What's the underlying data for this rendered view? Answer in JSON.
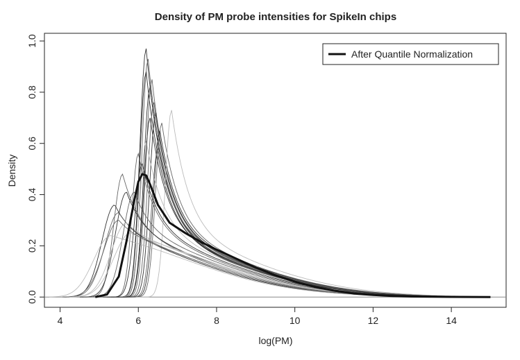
{
  "chart_data": {
    "type": "line",
    "title": "Density of PM probe intensities for SpikeIn chips",
    "xlabel": "log(PM)",
    "ylabel": "Density",
    "xlim": [
      3.6,
      15.4
    ],
    "ylim": [
      -0.04,
      1.03
    ],
    "x_ticks": [
      "4",
      "6",
      "8",
      "10",
      "12",
      "14"
    ],
    "x_tick_values": [
      4,
      6,
      8,
      10,
      12,
      14
    ],
    "y_ticks": [
      "0.0",
      "0.2",
      "0.4",
      "0.6",
      "0.8",
      "1.0"
    ],
    "y_tick_values": [
      0.0,
      0.2,
      0.4,
      0.6,
      0.8,
      1.0
    ],
    "legend": {
      "position": "top-right",
      "entries": [
        "After Quantile Normalization"
      ]
    },
    "colors": {
      "dark": "#333333",
      "mid": "#666666",
      "light": "#bbbbbb",
      "highlight": "#111111"
    },
    "highlight": {
      "name": "After Quantile Normalization",
      "x": [
        4.9,
        5.2,
        5.5,
        5.7,
        5.9,
        6.0,
        6.1,
        6.2,
        6.3,
        6.5,
        6.8,
        7.2,
        7.6,
        8.0,
        8.5,
        9.0,
        9.5,
        10.0,
        10.5,
        11.0,
        11.5,
        12.0,
        12.5,
        13.0,
        14.0,
        15.0
      ],
      "y": [
        0.0,
        0.01,
        0.08,
        0.22,
        0.38,
        0.45,
        0.48,
        0.475,
        0.44,
        0.36,
        0.29,
        0.25,
        0.215,
        0.185,
        0.15,
        0.115,
        0.085,
        0.06,
        0.04,
        0.025,
        0.014,
        0.008,
        0.004,
        0.002,
        0.0005,
        0.0
      ]
    },
    "series": [
      {
        "peak_x": 6.2,
        "peak_y": 0.97,
        "tone": "dark"
      },
      {
        "peak_x": 6.25,
        "peak_y": 0.93,
        "tone": "mid"
      },
      {
        "peak_x": 6.2,
        "peak_y": 0.88,
        "tone": "dark"
      },
      {
        "peak_x": 6.35,
        "peak_y": 0.85,
        "tone": "mid"
      },
      {
        "peak_x": 6.3,
        "peak_y": 0.82,
        "tone": "dark"
      },
      {
        "peak_x": 6.4,
        "peak_y": 0.76,
        "tone": "mid"
      },
      {
        "peak_x": 6.45,
        "peak_y": 0.72,
        "tone": "dark"
      },
      {
        "peak_x": 6.6,
        "peak_y": 0.68,
        "tone": "mid"
      },
      {
        "peak_x": 6.55,
        "peak_y": 0.65,
        "tone": "dark"
      },
      {
        "peak_x": 6.85,
        "peak_y": 0.73,
        "tone": "light"
      },
      {
        "peak_x": 6.2,
        "peak_y": 0.61,
        "tone": "light"
      },
      {
        "peak_x": 6.0,
        "peak_y": 0.56,
        "tone": "mid"
      },
      {
        "peak_x": 5.6,
        "peak_y": 0.48,
        "tone": "mid"
      },
      {
        "peak_x": 5.7,
        "peak_y": 0.41,
        "tone": "dark"
      },
      {
        "peak_x": 5.9,
        "peak_y": 0.41,
        "tone": "mid"
      },
      {
        "peak_x": 5.4,
        "peak_y": 0.36,
        "tone": "dark"
      },
      {
        "peak_x": 5.5,
        "peak_y": 0.33,
        "tone": "mid"
      },
      {
        "peak_x": 5.7,
        "peak_y": 0.29,
        "tone": "light"
      },
      {
        "peak_x": 5.8,
        "peak_y": 0.25,
        "tone": "light"
      },
      {
        "peak_x": 5.3,
        "peak_y": 0.24,
        "tone": "light"
      },
      {
        "peak_x": 6.1,
        "peak_y": 0.52,
        "tone": "dark"
      },
      {
        "peak_x": 6.5,
        "peak_y": 0.58,
        "tone": "mid"
      },
      {
        "peak_x": 5.5,
        "peak_y": 0.3,
        "tone": "mid"
      },
      {
        "peak_x": 6.3,
        "peak_y": 0.7,
        "tone": "dark"
      }
    ]
  }
}
